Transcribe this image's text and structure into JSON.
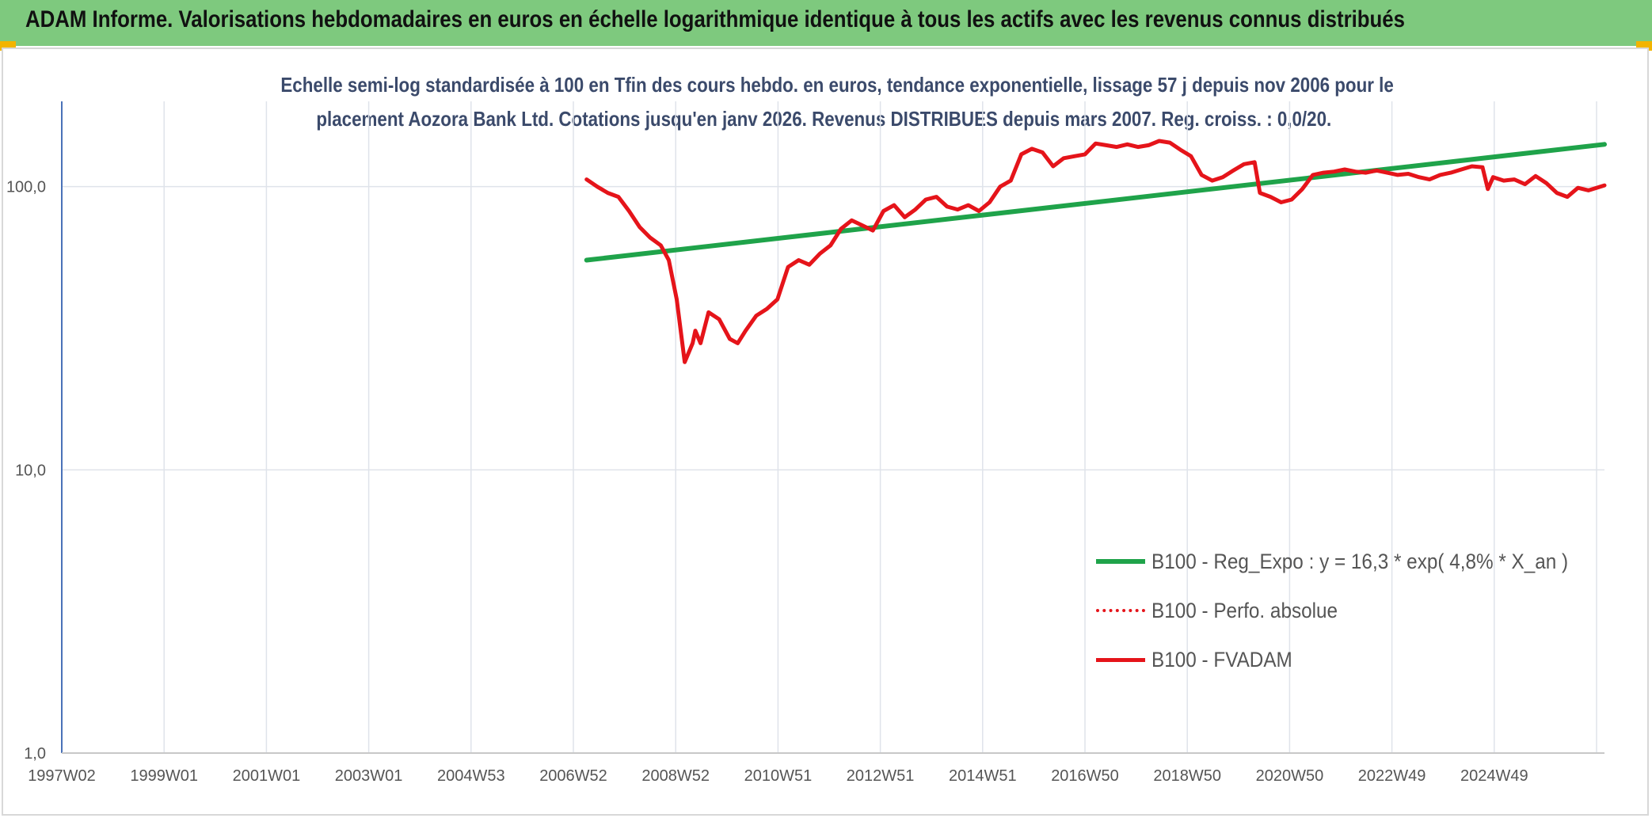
{
  "header": {
    "title": "ADAM Informe. Valorisations hebdomadaires en euros en échelle logarithmique identique à tous les actifs avec les revenus connus distribués"
  },
  "colors": {
    "header_bg": "#7ec97e",
    "corner_accent": "#f2b400",
    "regression": "#1fa34a",
    "series": "#e5141a",
    "title_text": "#3b4a6b"
  },
  "chart_data": {
    "type": "line",
    "title_lines": [
      "Echelle semi-log standardisée à 100 en Tfin des cours hebdo. en euros, tendance exponentielle, lissage 57 j depuis nov 2006 pour le",
      "placement Aozora Bank Ltd. Cotations jusqu'en janv 2026. Revenus DISTRIBUES depuis mars 2007. Reg. croiss. : 0,0/20."
    ],
    "y_scale": "log",
    "ylim": [
      1,
      200
    ],
    "y_ticks": [
      {
        "value": 1,
        "label": "1,0"
      },
      {
        "value": 10,
        "label": "10,0"
      },
      {
        "value": 100,
        "label": "100,0"
      }
    ],
    "x_ticks": [
      "1997W02",
      "1999W01",
      "2001W01",
      "2003W01",
      "2004W53",
      "2006W52",
      "2008W52",
      "2010W51",
      "2012W51",
      "2014W51",
      "2016W50",
      "2018W50",
      "2020W50",
      "2022W49",
      "2024W49"
    ],
    "xlim": [
      1997.0,
      2026.1
    ],
    "grid": true,
    "legend_position": "bottom-right",
    "legend": [
      {
        "label": "B100 - Reg_Expo : y = 16,3 * exp( 4,8% *  X_an )",
        "style": "solid-green"
      },
      {
        "label": "B100 - Perfo. absolue",
        "style": "dotted-red"
      },
      {
        "label": "B100 - FVADAM",
        "style": "solid-red"
      }
    ],
    "series": [
      {
        "name": "B100 - Reg_Expo : y = 16,3 * exp( 4,8% *  X_an )",
        "x": [
          2006.9,
          2026.1
        ],
        "y": [
          55,
          141
        ]
      },
      {
        "name": "B100 - Perfo. absolue",
        "x": [],
        "y": []
      },
      {
        "name": "B100 - FVADAM",
        "x": [
          2006.9,
          2007.1,
          2007.3,
          2007.5,
          2007.7,
          2007.9,
          2008.1,
          2008.3,
          2008.45,
          2008.6,
          2008.75,
          2008.9,
          2008.95,
          2009.05,
          2009.2,
          2009.4,
          2009.6,
          2009.75,
          2009.9,
          2010.1,
          2010.3,
          2010.5,
          2010.7,
          2010.9,
          2011.1,
          2011.3,
          2011.5,
          2011.7,
          2011.9,
          2012.1,
          2012.3,
          2012.5,
          2012.7,
          2012.9,
          2013.1,
          2013.3,
          2013.5,
          2013.7,
          2013.9,
          2014.1,
          2014.3,
          2014.5,
          2014.7,
          2014.9,
          2015.1,
          2015.3,
          2015.5,
          2015.7,
          2015.9,
          2016.1,
          2016.3,
          2016.5,
          2016.7,
          2016.9,
          2017.1,
          2017.3,
          2017.5,
          2017.7,
          2017.9,
          2018.1,
          2018.3,
          2018.5,
          2018.7,
          2018.9,
          2019.1,
          2019.3,
          2019.5,
          2019.6,
          2019.8,
          2020.0,
          2020.2,
          2020.4,
          2020.6,
          2020.8,
          2021.0,
          2021.2,
          2021.4,
          2021.6,
          2021.8,
          2022.0,
          2022.2,
          2022.4,
          2022.6,
          2022.8,
          2023.0,
          2023.2,
          2023.4,
          2023.6,
          2023.8,
          2023.9,
          2024.0,
          2024.2,
          2024.4,
          2024.6,
          2024.8,
          2025.0,
          2025.2,
          2025.4,
          2025.6,
          2025.8,
          2026.1
        ],
        "y": [
          106,
          100,
          95,
          92,
          82,
          72,
          66,
          62,
          55,
          40,
          24,
          28,
          31,
          28,
          36,
          34,
          29,
          28,
          31,
          35,
          37,
          40,
          52,
          55,
          53,
          58,
          62,
          71,
          76,
          73,
          70,
          82,
          86,
          78,
          83,
          90,
          92,
          85,
          83,
          86,
          82,
          88,
          100,
          105,
          130,
          136,
          132,
          118,
          126,
          128,
          130,
          142,
          140,
          138,
          141,
          138,
          140,
          145,
          143,
          135,
          128,
          110,
          105,
          108,
          114,
          120,
          122,
          95,
          92,
          88,
          90,
          98,
          110,
          112,
          113,
          115,
          113,
          112,
          114,
          112,
          110,
          111,
          108,
          106,
          110,
          112,
          115,
          118,
          117,
          98,
          108,
          105,
          106,
          102,
          109,
          103,
          95,
          92,
          99,
          97,
          101
        ]
      }
    ]
  }
}
